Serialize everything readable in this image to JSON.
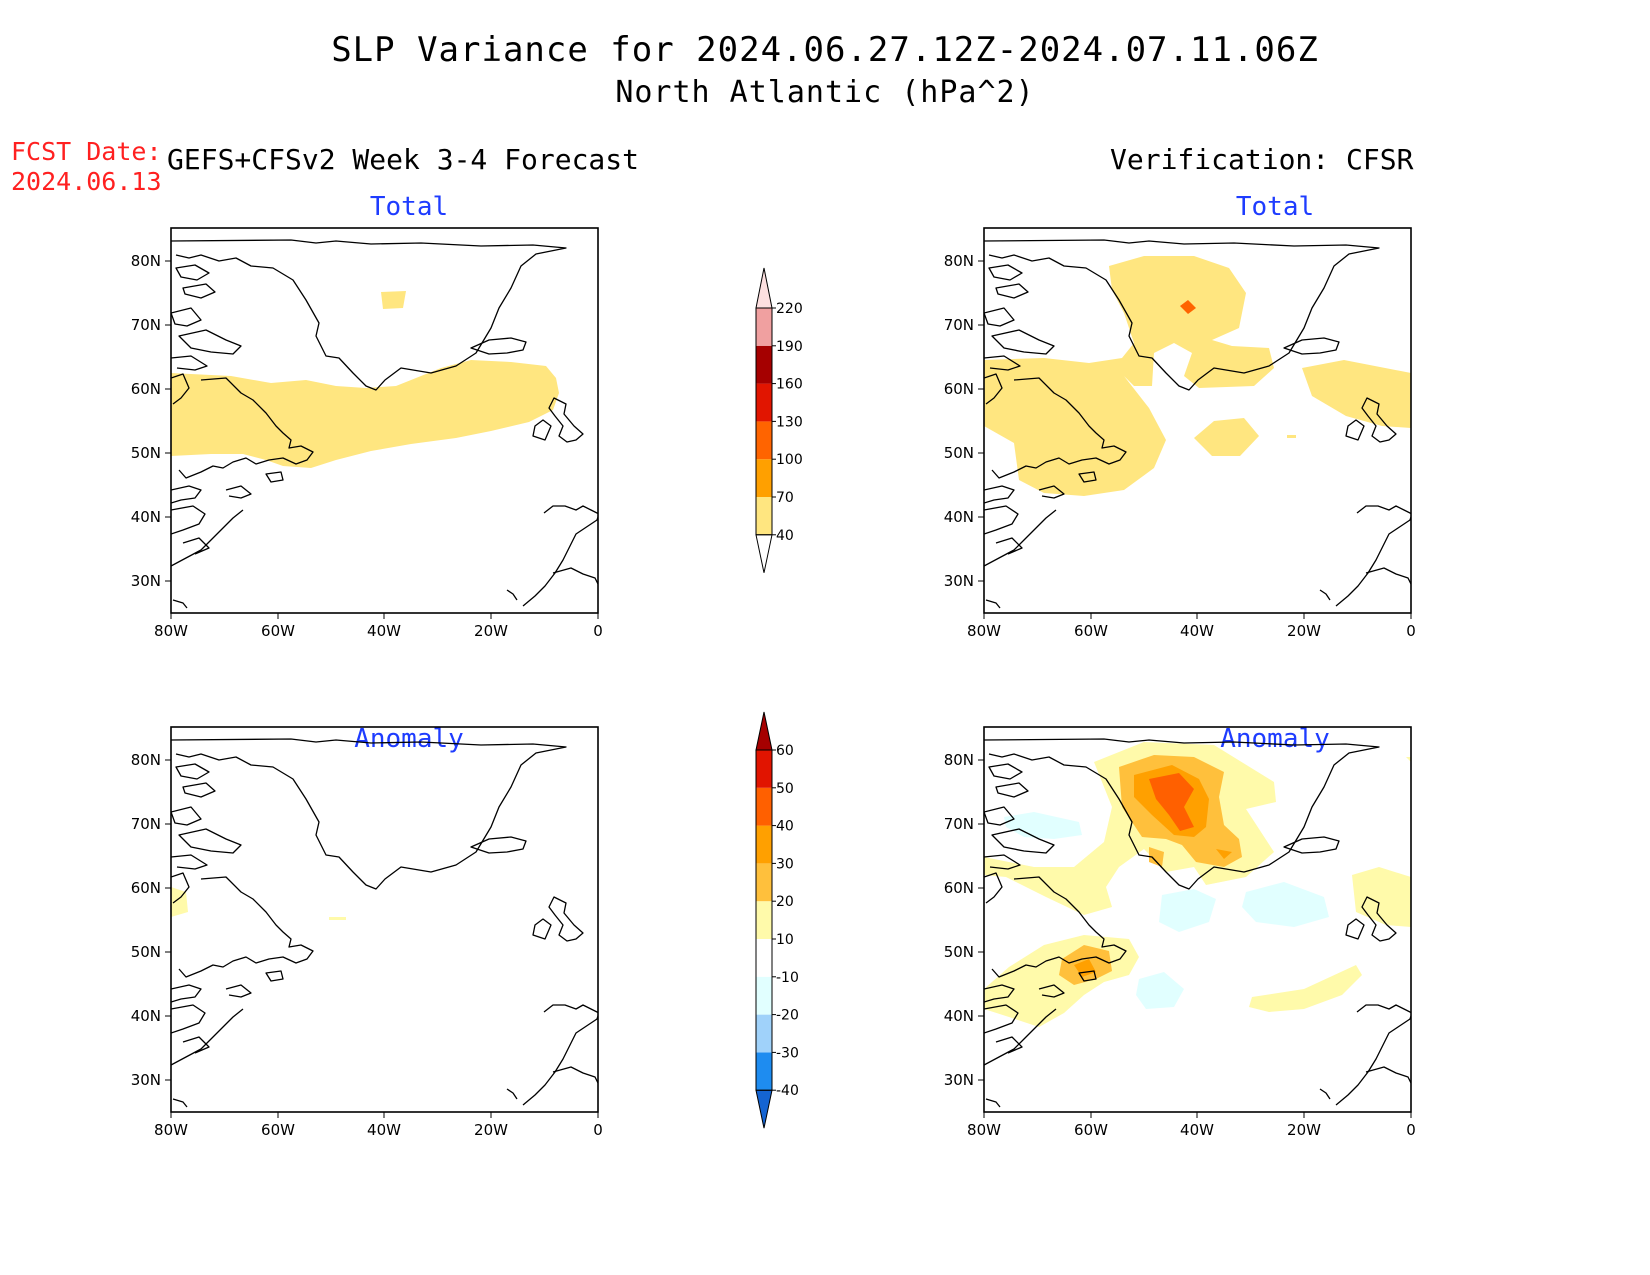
{
  "header": {
    "title_line1": "SLP Variance for 2024.06.27.12Z-2024.07.11.06Z",
    "title_line2": "North Atlantic (hPa^2)",
    "fcst_label": "FCST Date:",
    "fcst_date": "2024.06.13",
    "left_heading": "GEFS+CFSv2 Week 3-4 Forecast",
    "right_heading": "Verification: CFSR"
  },
  "panels": {
    "forecast_total": {
      "title": "Total"
    },
    "verification_total": {
      "title": "Total"
    },
    "forecast_anomaly": {
      "title": "Anomaly"
    },
    "verification_anomaly": {
      "title": "Anomaly"
    }
  },
  "axes": {
    "lat_labels": [
      "80N",
      "70N",
      "60N",
      "50N",
      "40N",
      "30N"
    ],
    "lon_labels": [
      "80W",
      "60W",
      "40W",
      "20W",
      "0"
    ]
  },
  "colorbar_total": {
    "labels": [
      "40",
      "70",
      "100",
      "130",
      "160",
      "190",
      "220"
    ],
    "colors": [
      "#ffe680",
      "#ffa000",
      "#ff6400",
      "#e11500",
      "#a50000",
      "#f0a0a0",
      "#fde0e0"
    ]
  },
  "colorbar_anomaly": {
    "labels": [
      "-40",
      "-30",
      "-20",
      "-10",
      "10",
      "20",
      "30",
      "40",
      "50",
      "60"
    ],
    "colors": [
      "#1464d2",
      "#1e8cf0",
      "#a0d2fa",
      "#e1ffff",
      "#ffffff",
      "#fffaaa",
      "#ffc03c",
      "#ffa000",
      "#ff6000",
      "#e11400",
      "#a50000"
    ]
  }
}
